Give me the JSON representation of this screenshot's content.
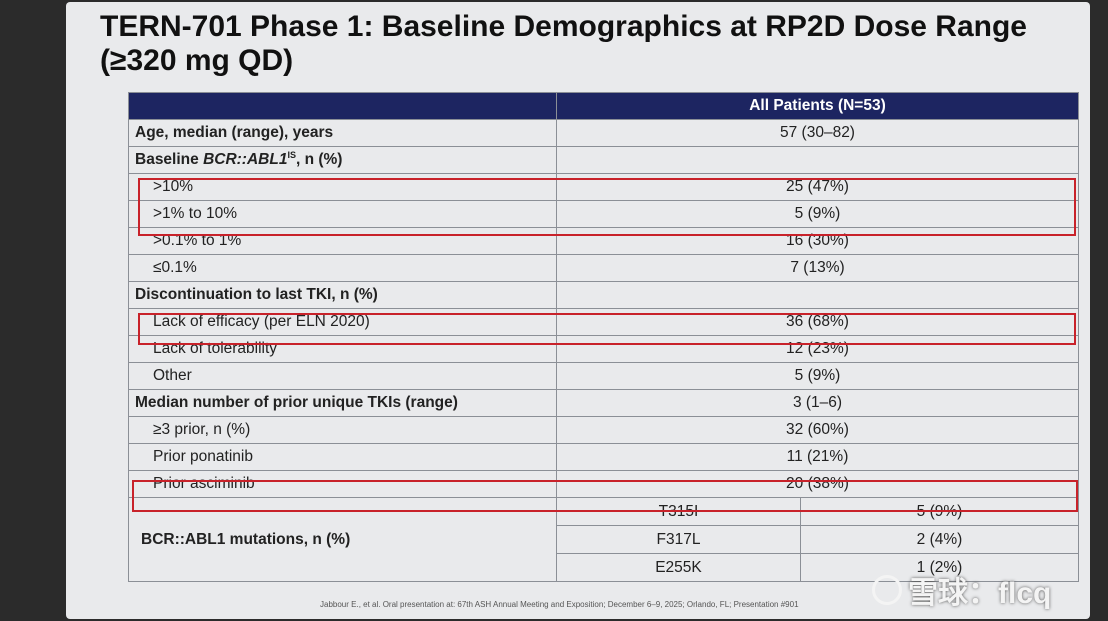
{
  "slide": {
    "title": "TERN-701 Phase 1: Baseline Demographics at RP2D Dose Range (≥320 mg QD)",
    "column_header": "All Patients (N=53)",
    "rows": [
      {
        "label": "Age, median (range), years",
        "value": "57 (30–82)"
      },
      {
        "label_prefix": "Baseline ",
        "label_italic": "BCR::ABL1",
        "label_sup": "IS",
        "label_suffix": ", n (%)",
        "value": ""
      },
      {
        "label": ">10%",
        "value": "25 (47%)"
      },
      {
        "label": ">1% to 10%",
        "value": "5 (9%)"
      },
      {
        "label": ">0.1% to 1%",
        "value": "16 (30%)"
      },
      {
        "label": "≤0.1%",
        "value": "7 (13%)"
      },
      {
        "label": "Discontinuation to last TKI, n (%)",
        "value": ""
      },
      {
        "label": "Lack of efficacy (per ELN 2020)",
        "value": "36 (68%)"
      },
      {
        "label": "Lack of tolerability",
        "value": "12 (23%)"
      },
      {
        "label": "Other",
        "value": "5 (9%)"
      },
      {
        "label": "Median number of prior unique TKIs (range)",
        "value": "3 (1–6)"
      },
      {
        "label": "≥3 prior, n (%)",
        "value": "32 (60%)"
      },
      {
        "label": "Prior ponatinib",
        "value": "11 (21%)"
      },
      {
        "label": "Prior asciminib",
        "value": "20 (38%)"
      }
    ],
    "mutations": {
      "label": "BCR::ABL1 mutations, n (%)",
      "items": [
        {
          "name": "T315I",
          "value": "5 (9%)"
        },
        {
          "name": "F317L",
          "value": "2 (4%)"
        },
        {
          "name": "E255K",
          "value": "1 (2%)"
        }
      ]
    },
    "footnote": "Jabbour E., et al. Oral presentation at: 67th ASH Annual Meeting and Exposition; December 6–9, 2025; Orlando, FL; Presentation #901",
    "watermark": "雪球：flcq",
    "highlight_color": "#c8222a",
    "header_color": "#1d2561"
  }
}
